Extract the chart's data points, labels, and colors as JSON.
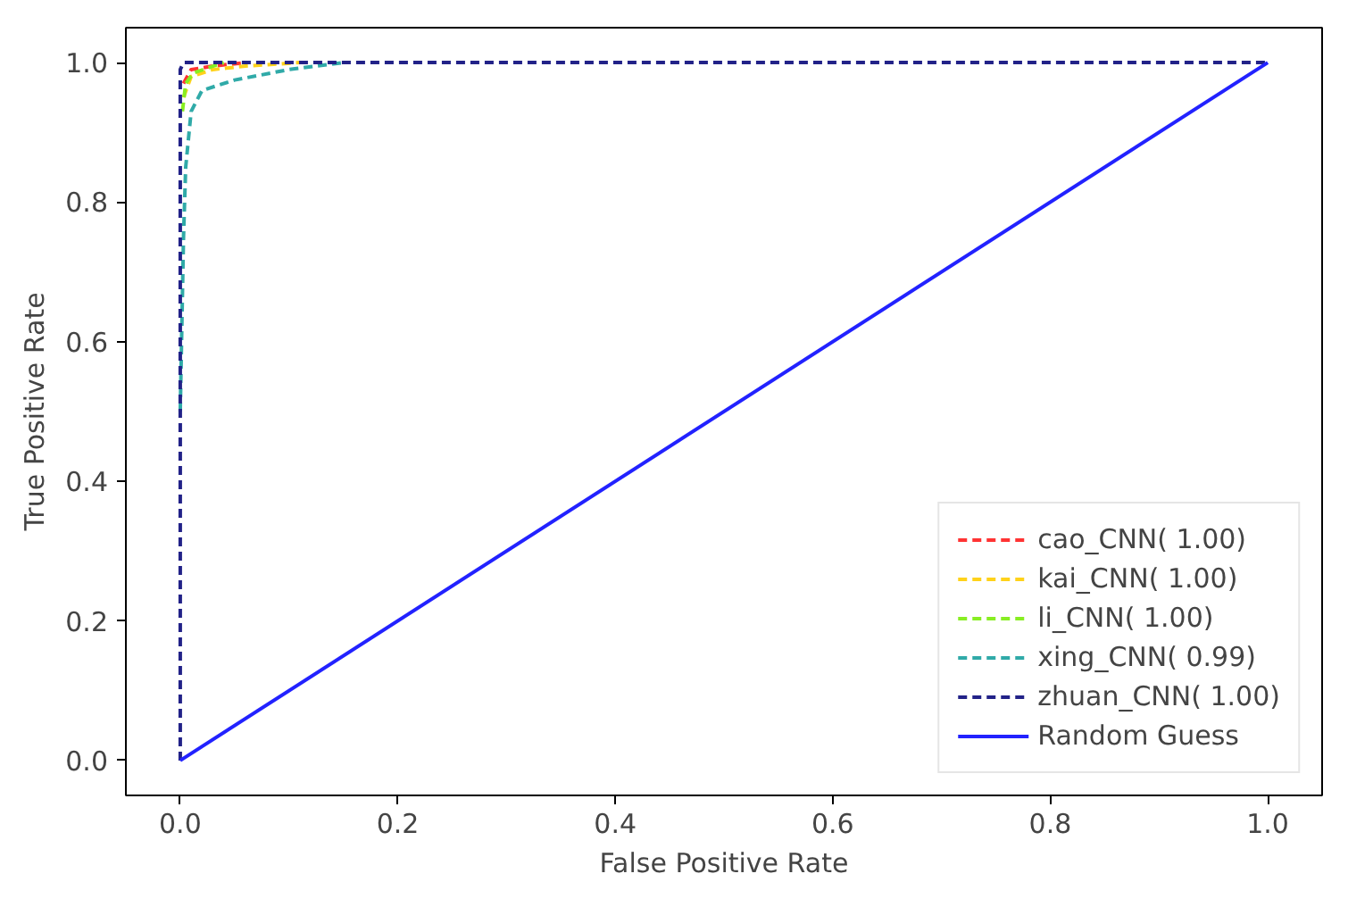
{
  "chart_data": {
    "type": "line",
    "xlabel": "False Positive Rate",
    "ylabel": "True Positive Rate",
    "xlim": [
      -0.05,
      1.05
    ],
    "ylim": [
      -0.05,
      1.05
    ],
    "xticks": [
      {
        "value": 0,
        "label": "0.0"
      },
      {
        "value": 0.2,
        "label": "0.2"
      },
      {
        "value": 0.4,
        "label": "0.4"
      },
      {
        "value": 0.6,
        "label": "0.6"
      },
      {
        "value": 0.8,
        "label": "0.8"
      },
      {
        "value": 1,
        "label": "1.0"
      }
    ],
    "yticks": [
      {
        "value": 0,
        "label": "0.0"
      },
      {
        "value": 0.2,
        "label": "0.2"
      },
      {
        "value": 0.4,
        "label": "0.4"
      },
      {
        "value": 0.6,
        "label": "0.6"
      },
      {
        "value": 0.8,
        "label": "0.8"
      },
      {
        "value": 1,
        "label": "1.0"
      }
    ],
    "grid": false,
    "legend": "bottom right",
    "marker": "none",
    "series": [
      {
        "name": "cao_CNN( 1.00)",
        "color": "#ff3333",
        "line_style": "dashed",
        "x": [
          0.003,
          0.01,
          0.03,
          0.06
        ],
        "values": [
          0.97,
          0.99,
          0.995,
          1
        ]
      },
      {
        "name": "kai_CNN( 1.00)",
        "color": "#ffd21a",
        "line_style": "dashed",
        "x": [
          0.003,
          0.01,
          0.03,
          0.06,
          0.11
        ],
        "values": [
          0.95,
          0.98,
          0.99,
          0.995,
          1
        ]
      },
      {
        "name": "li_CNN( 1.00)",
        "color": "#88ee22",
        "line_style": "dashed",
        "x": [
          0.002,
          0.005,
          0.012,
          0.04
        ],
        "values": [
          0.93,
          0.97,
          0.985,
          1
        ]
      },
      {
        "name": "xing_CNN( 0.99)",
        "color": "#30aaa8",
        "line_style": "dashed",
        "x": [
          0,
          0.003,
          0.005,
          0.01,
          0.02,
          0.05,
          0.1,
          0.15
        ],
        "values": [
          0.5,
          0.75,
          0.85,
          0.93,
          0.96,
          0.975,
          0.99,
          1
        ]
      },
      {
        "name": "zhuan_CNN( 1.00)",
        "color": "#222288",
        "line_style": "dashed",
        "x": [
          0,
          0,
          0.003,
          1
        ],
        "values": [
          0,
          0.99,
          1,
          1
        ]
      },
      {
        "name": "Random Guess",
        "color": "#2222ff",
        "line_style": "solid",
        "x": [
          0,
          1
        ],
        "values": [
          0,
          1
        ]
      }
    ]
  }
}
